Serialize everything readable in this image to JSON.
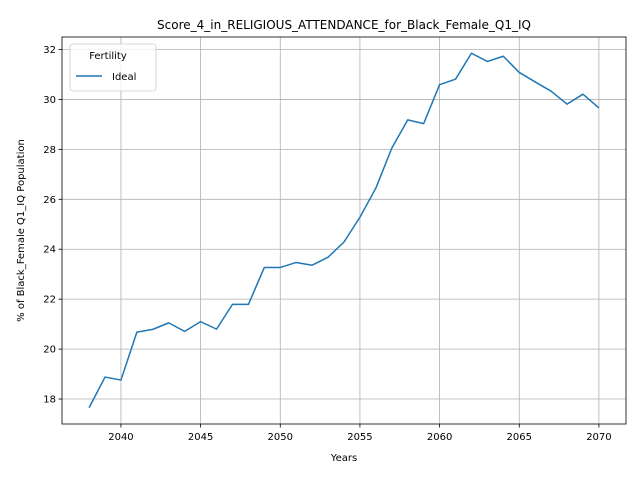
{
  "chart_data": {
    "type": "line",
    "title": "Score_4_in_RELIGIOUS_ATTENDANCE_for_Black_Female_Q1_IQ",
    "xlabel": "Years",
    "ylabel": "% of Black_Female Q1_IQ Population",
    "xlim": [
      2036.3,
      2071.7
    ],
    "ylim": [
      17.0,
      32.5
    ],
    "xticks": [
      2040,
      2045,
      2050,
      2055,
      2060,
      2065,
      2070
    ],
    "yticks": [
      18,
      20,
      22,
      24,
      26,
      28,
      30,
      32
    ],
    "grid": true,
    "legend": {
      "title": "Fertility",
      "position": "upper-left"
    },
    "series": [
      {
        "name": "Ideal",
        "color": "#1f77b4",
        "x": [
          2038,
          2039,
          2040,
          2041,
          2042,
          2043,
          2044,
          2045,
          2046,
          2047,
          2048,
          2049,
          2050,
          2051,
          2052,
          2053,
          2054,
          2055,
          2056,
          2057,
          2058,
          2059,
          2060,
          2061,
          2062,
          2063,
          2064,
          2065,
          2066,
          2067,
          2068,
          2069,
          2070
        ],
        "y": [
          17.65,
          18.88,
          18.76,
          20.68,
          20.79,
          21.05,
          20.71,
          21.1,
          20.8,
          21.79,
          21.79,
          23.27,
          23.27,
          23.47,
          23.36,
          23.68,
          24.29,
          25.28,
          26.45,
          28.05,
          29.18,
          29.03,
          30.59,
          30.81,
          31.85,
          31.52,
          31.73,
          31.08,
          30.7,
          30.33,
          29.81,
          30.21,
          29.66
        ]
      }
    ]
  }
}
